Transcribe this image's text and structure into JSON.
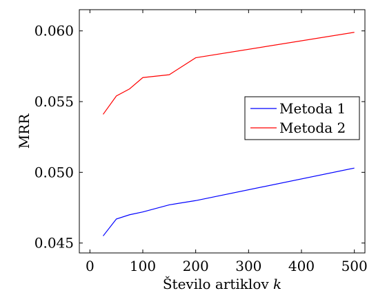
{
  "chart_data": {
    "type": "line",
    "xlabel": "Število artiklov k",
    "ylabel": "MRR",
    "xlim": [
      -20,
      520
    ],
    "ylim": [
      0.0443,
      0.0615
    ],
    "xticks": [
      0,
      100,
      200,
      300,
      400,
      500
    ],
    "xtick_labels": [
      "0",
      "100",
      "200",
      "300",
      "400",
      "500"
    ],
    "yticks": [
      0.045,
      0.05,
      0.055,
      0.06
    ],
    "ytick_labels": [
      "0.045",
      "0.050",
      "0.055",
      "0.060"
    ],
    "grid": false,
    "legend_position": "center-right",
    "series": [
      {
        "name": "Metoda 1",
        "color": "#0000ff",
        "x": [
          25,
          50,
          75,
          100,
          150,
          200,
          500
        ],
        "y": [
          0.0455,
          0.0467,
          0.047,
          0.0472,
          0.0477,
          0.048,
          0.0503
        ]
      },
      {
        "name": "Metoda 2",
        "color": "#ff0000",
        "x": [
          25,
          50,
          75,
          100,
          150,
          200,
          500
        ],
        "y": [
          0.0541,
          0.0554,
          0.0559,
          0.0567,
          0.0569,
          0.0581,
          0.0599
        ]
      }
    ]
  }
}
